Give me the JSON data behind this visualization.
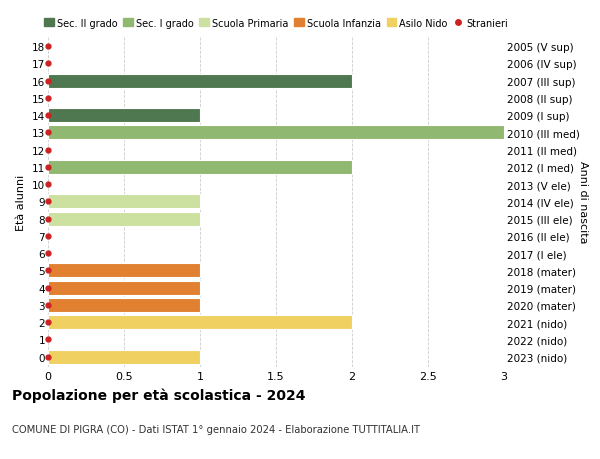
{
  "ages": [
    0,
    1,
    2,
    3,
    4,
    5,
    6,
    7,
    8,
    9,
    10,
    11,
    12,
    13,
    14,
    15,
    16,
    17,
    18
  ],
  "right_labels": [
    "2023 (nido)",
    "2022 (nido)",
    "2021 (nido)",
    "2020 (mater)",
    "2019 (mater)",
    "2018 (mater)",
    "2017 (I ele)",
    "2016 (II ele)",
    "2015 (III ele)",
    "2014 (IV ele)",
    "2013 (V ele)",
    "2012 (I med)",
    "2011 (II med)",
    "2010 (III med)",
    "2009 (I sup)",
    "2008 (II sup)",
    "2007 (III sup)",
    "2006 (IV sup)",
    "2005 (V sup)"
  ],
  "bars": [
    {
      "age": 0,
      "value": 1.0,
      "color": "#f0d060"
    },
    {
      "age": 1,
      "value": 0.0,
      "color": "#f0d060"
    },
    {
      "age": 2,
      "value": 2.0,
      "color": "#f0d060"
    },
    {
      "age": 3,
      "value": 1.0,
      "color": "#e08030"
    },
    {
      "age": 4,
      "value": 1.0,
      "color": "#e08030"
    },
    {
      "age": 5,
      "value": 1.0,
      "color": "#e08030"
    },
    {
      "age": 6,
      "value": 0.0,
      "color": "#cce0a0"
    },
    {
      "age": 7,
      "value": 0.0,
      "color": "#cce0a0"
    },
    {
      "age": 8,
      "value": 1.0,
      "color": "#cce0a0"
    },
    {
      "age": 9,
      "value": 1.0,
      "color": "#cce0a0"
    },
    {
      "age": 10,
      "value": 0.0,
      "color": "#cce0a0"
    },
    {
      "age": 11,
      "value": 2.0,
      "color": "#90b870"
    },
    {
      "age": 12,
      "value": 0.0,
      "color": "#90b870"
    },
    {
      "age": 13,
      "value": 3.0,
      "color": "#90b870"
    },
    {
      "age": 14,
      "value": 1.0,
      "color": "#507850"
    },
    {
      "age": 15,
      "value": 0.0,
      "color": "#507850"
    },
    {
      "age": 16,
      "value": 2.0,
      "color": "#507850"
    },
    {
      "age": 17,
      "value": 0.0,
      "color": "#507850"
    },
    {
      "age": 18,
      "value": 0.0,
      "color": "#507850"
    }
  ],
  "dot_color": "#cc2222",
  "legend_items": [
    {
      "label": "Sec. II grado",
      "color": "#507850",
      "type": "patch"
    },
    {
      "label": "Sec. I grado",
      "color": "#90b870",
      "type": "patch"
    },
    {
      "label": "Scuola Primaria",
      "color": "#cce0a0",
      "type": "patch"
    },
    {
      "label": "Scuola Infanzia",
      "color": "#e08030",
      "type": "patch"
    },
    {
      "label": "Asilo Nido",
      "color": "#f0d060",
      "type": "patch"
    },
    {
      "label": "Stranieri",
      "color": "#cc2222",
      "type": "dot"
    }
  ],
  "ylabel_left": "Età alunni",
  "ylabel_right": "Anni di nascita",
  "title": "Popolazione per età scolastica - 2024",
  "subtitle": "COMUNE DI PIGRA (CO) - Dati ISTAT 1° gennaio 2024 - Elaborazione TUTTITALIA.IT",
  "xlim": [
    0,
    3.0
  ],
  "xticks": [
    0,
    0.5,
    1.0,
    1.5,
    2.0,
    2.5,
    3.0
  ],
  "background_color": "#ffffff",
  "grid_color": "#cccccc"
}
